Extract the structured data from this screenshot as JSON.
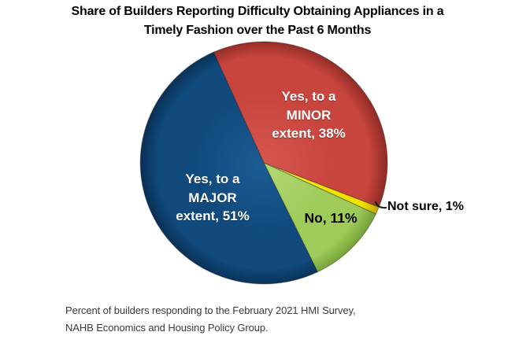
{
  "title": {
    "line1": "Share of Builders Reporting Difficulty Obtaining Appliances in a",
    "line2": "Timely Fashion over the Past 6 Months"
  },
  "chart_data": {
    "type": "pie",
    "title": "Share of Builders Reporting Difficulty Obtaining Appliances in a Timely Fashion over the Past 6 Months",
    "direction": "clockwise",
    "start_angle_deg": -24,
    "legend_position": "none",
    "slices": [
      {
        "id": "minor",
        "label": "Yes, to a MINOR extent",
        "value_pct": 38,
        "color": "#C8453E",
        "color_light": "#D6564E",
        "color_dark": "#8E2A25",
        "label_lines": [
          "Yes, to a",
          "MINOR",
          "extent, 38%"
        ],
        "label_color": "#FFFFFF"
      },
      {
        "id": "not-sure",
        "label": "Not sure",
        "value_pct": 1,
        "color": "#F1E300",
        "color_light": "#F9F04A",
        "color_dark": "#BCA800",
        "label_lines": [
          "Not sure, 1%"
        ],
        "label_color": "#000000"
      },
      {
        "id": "no",
        "label": "No",
        "value_pct": 11,
        "color": "#9FCB5B",
        "color_light": "#B3D873",
        "color_dark": "#72A035",
        "label_lines": [
          "No, 11%"
        ],
        "label_color": "#000000"
      },
      {
        "id": "major",
        "label": "Yes, to a MAJOR extent",
        "value_pct": 51,
        "color": "#104A7D",
        "color_light": "#1D5C95",
        "color_dark": "#092F53",
        "label_lines": [
          "Yes, to a",
          "MAJOR",
          "extent, 51%"
        ],
        "label_color": "#FFFFFF"
      }
    ]
  },
  "footer": {
    "line1": "Percent of builders responding to the February 2021 HMI Survey,",
    "line2": "NAHB Economics and Housing Policy Group."
  }
}
